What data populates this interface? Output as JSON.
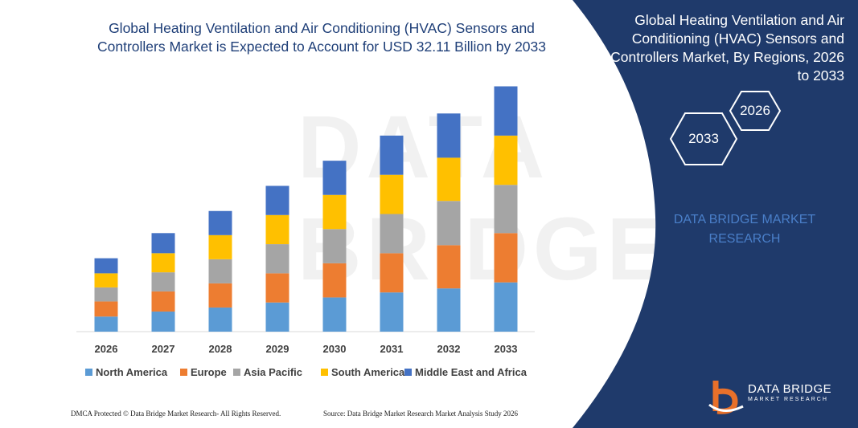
{
  "title": "Global Heating Ventilation and Air Conditioning (HVAC) Sensors and Controllers Market is Expected to Account for USD 32.11 Billion by 2033",
  "panel": {
    "title": "Global Heating Ventilation and Air Conditioning (HVAC) Sensors and Controllers Market, By Regions, 2026 to 2033",
    "hex_back": "2026",
    "hex_front": "2033",
    "brand": "DATA BRIDGE MARKET RESEARCH",
    "logo_name": "DATA BRIDGE",
    "logo_sub": "MARKET RESEARCH",
    "bg_color": "#1f3a6b"
  },
  "footer": {
    "left": "DMCA Protected © Data Bridge Market Research- All Rights Reserved.",
    "right": "Source: Data Bridge Market Research Market Analysis Study 2026"
  },
  "chart_data": {
    "type": "bar",
    "stacked": true,
    "categories": [
      "2026",
      "2027",
      "2028",
      "2029",
      "2030",
      "2031",
      "2032",
      "2033"
    ],
    "series": [
      {
        "name": "North America",
        "color": "#5b9bd5",
        "values": [
          1.5,
          2.0,
          2.4,
          2.9,
          3.4,
          3.9,
          4.3,
          4.9
        ]
      },
      {
        "name": "Europe",
        "color": "#ed7d31",
        "values": [
          1.5,
          2.0,
          2.4,
          2.9,
          3.4,
          3.9,
          4.3,
          4.9
        ]
      },
      {
        "name": "Asia Pacific",
        "color": "#a5a5a5",
        "values": [
          1.4,
          1.9,
          2.4,
          2.9,
          3.4,
          3.9,
          4.4,
          4.8
        ]
      },
      {
        "name": "South America",
        "color": "#ffc000",
        "values": [
          1.4,
          1.9,
          2.4,
          2.9,
          3.4,
          3.9,
          4.3,
          4.9
        ]
      },
      {
        "name": "Middle East and Africa",
        "color": "#4472c4",
        "values": [
          1.5,
          2.0,
          2.4,
          2.9,
          3.4,
          3.9,
          4.4,
          4.9
        ]
      }
    ],
    "ylim": [
      0,
      25
    ],
    "xlabel": "",
    "ylabel": "",
    "legend": "bottom",
    "grid": false
  }
}
